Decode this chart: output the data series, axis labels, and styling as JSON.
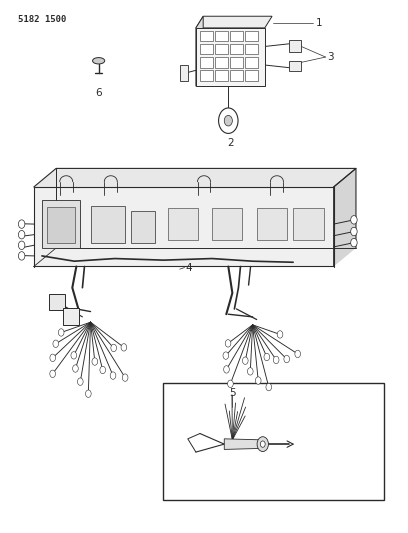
{
  "background_color": "#ffffff",
  "line_color": "#2a2a2a",
  "title_text": "5182 1500",
  "title_fontsize": 6.5,
  "label_fontsize": 7.5,
  "fig_width": 4.08,
  "fig_height": 5.33,
  "dpi": 100
}
